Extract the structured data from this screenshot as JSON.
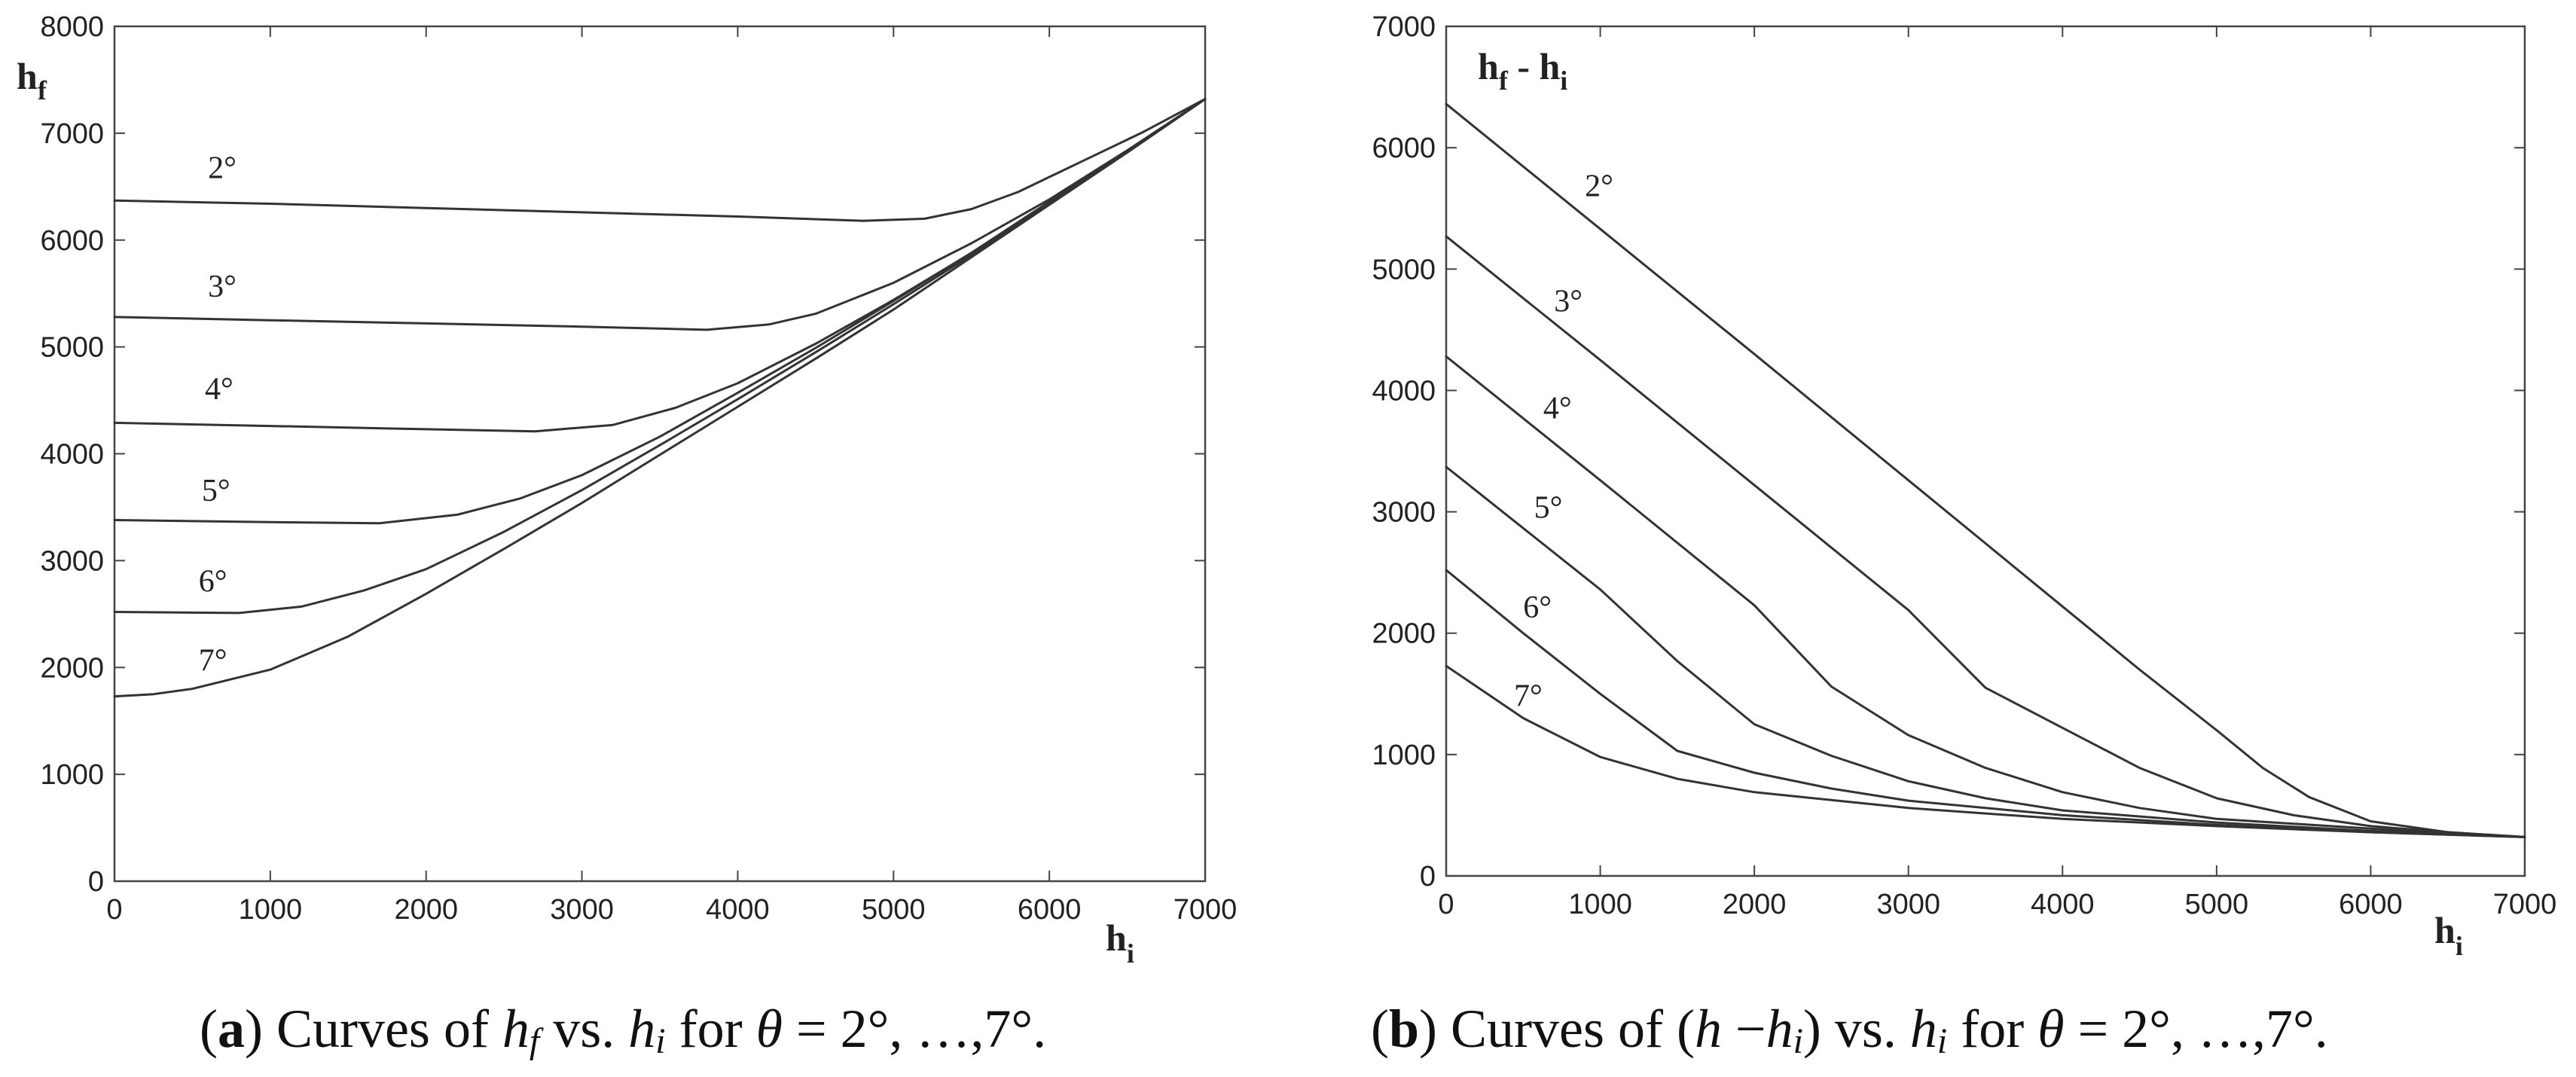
{
  "chart_data": [
    {
      "type": "line",
      "xlabel": "h",
      "xlabel_sub": "i",
      "ylabel": "h",
      "ylabel_sub": "f",
      "xlim": [
        0,
        7000
      ],
      "ylim": [
        0,
        8000
      ],
      "xticks": [
        "0",
        "1000",
        "2000",
        "3000",
        "4000",
        "5000",
        "6000",
        "7000"
      ],
      "yticks": [
        "0",
        "1000",
        "2000",
        "3000",
        "4000",
        "5000",
        "6000",
        "7000",
        "8000"
      ],
      "grid": false,
      "series": [
        {
          "name": "2°",
          "label_at": [
            600,
            6580
          ],
          "points": [
            [
              0,
              6370
            ],
            [
              1000,
              6340
            ],
            [
              2000,
              6300
            ],
            [
              3000,
              6260
            ],
            [
              4000,
              6220
            ],
            [
              4800,
              6180
            ],
            [
              5200,
              6200
            ],
            [
              5500,
              6290
            ],
            [
              5800,
              6450
            ],
            [
              6200,
              6730
            ],
            [
              6600,
              7010
            ],
            [
              7000,
              7320
            ]
          ]
        },
        {
          "name": "3°",
          "label_at": [
            600,
            5470
          ],
          "points": [
            [
              0,
              5280
            ],
            [
              1000,
              5250
            ],
            [
              2000,
              5220
            ],
            [
              3000,
              5190
            ],
            [
              3800,
              5160
            ],
            [
              4200,
              5210
            ],
            [
              4500,
              5310
            ],
            [
              5000,
              5600
            ],
            [
              5500,
              5970
            ],
            [
              6000,
              6380
            ],
            [
              6500,
              6840
            ],
            [
              7000,
              7320
            ]
          ]
        },
        {
          "name": "4°",
          "label_at": [
            580,
            4510
          ],
          "points": [
            [
              0,
              4290
            ],
            [
              1000,
              4260
            ],
            [
              2000,
              4230
            ],
            [
              2700,
              4210
            ],
            [
              3200,
              4270
            ],
            [
              3600,
              4430
            ],
            [
              4000,
              4660
            ],
            [
              4500,
              5030
            ],
            [
              5000,
              5440
            ],
            [
              5500,
              5880
            ],
            [
              6000,
              6360
            ],
            [
              6500,
              6830
            ],
            [
              7000,
              7320
            ]
          ]
        },
        {
          "name": "5°",
          "label_at": [
            560,
            3560
          ],
          "points": [
            [
              0,
              3380
            ],
            [
              1000,
              3360
            ],
            [
              1700,
              3350
            ],
            [
              2200,
              3430
            ],
            [
              2600,
              3580
            ],
            [
              3000,
              3800
            ],
            [
              3500,
              4160
            ],
            [
              4000,
              4570
            ],
            [
              4500,
              4990
            ],
            [
              5000,
              5430
            ],
            [
              5500,
              5880
            ],
            [
              6000,
              6350
            ],
            [
              6500,
              6830
            ],
            [
              7000,
              7320
            ]
          ]
        },
        {
          "name": "6°",
          "label_at": [
            540,
            2710
          ],
          "points": [
            [
              0,
              2520
            ],
            [
              800,
              2510
            ],
            [
              1200,
              2570
            ],
            [
              1600,
              2720
            ],
            [
              2000,
              2920
            ],
            [
              2500,
              3270
            ],
            [
              3000,
              3660
            ],
            [
              3500,
              4080
            ],
            [
              4000,
              4510
            ],
            [
              4500,
              4950
            ],
            [
              5000,
              5400
            ],
            [
              5500,
              5860
            ],
            [
              6000,
              6340
            ],
            [
              6500,
              6820
            ],
            [
              7000,
              7320
            ]
          ]
        },
        {
          "name": "7°",
          "label_at": [
            540,
            1970
          ],
          "points": [
            [
              0,
              1730
            ],
            [
              250,
              1750
            ],
            [
              500,
              1800
            ],
            [
              1000,
              1980
            ],
            [
              1500,
              2290
            ],
            [
              2000,
              2690
            ],
            [
              2500,
              3110
            ],
            [
              3000,
              3540
            ],
            [
              3500,
              3990
            ],
            [
              4000,
              4440
            ],
            [
              4500,
              4890
            ],
            [
              5000,
              5350
            ],
            [
              5500,
              5840
            ],
            [
              6000,
              6330
            ],
            [
              6500,
              6820
            ],
            [
              7000,
              7320
            ]
          ]
        }
      ]
    },
    {
      "type": "line",
      "xlabel": "h",
      "xlabel_sub": "i",
      "ylabel": "h",
      "ylabel_sub": "f",
      "ylabel_rest": " - h",
      "ylabel_rest_sub": "i",
      "xlim": [
        0,
        7000
      ],
      "ylim": [
        0,
        7000
      ],
      "xticks": [
        "0",
        "1000",
        "2000",
        "3000",
        "4000",
        "5000",
        "6000",
        "7000"
      ],
      "yticks": [
        "0",
        "1000",
        "2000",
        "3000",
        "4000",
        "5000",
        "6000",
        "7000"
      ],
      "grid": false,
      "series": [
        {
          "name": "2°",
          "label_at": [
            900,
            5600
          ],
          "points": [
            [
              0,
              6360
            ],
            [
              1000,
              5330
            ],
            [
              2000,
              4300
            ],
            [
              3000,
              3260
            ],
            [
              4000,
              2220
            ],
            [
              4500,
              1700
            ],
            [
              5000,
              1200
            ],
            [
              5300,
              890
            ],
            [
              5600,
              650
            ],
            [
              6000,
              450
            ],
            [
              6500,
              360
            ],
            [
              7000,
              320
            ]
          ]
        },
        {
          "name": "3°",
          "label_at": [
            700,
            4650
          ],
          "points": [
            [
              0,
              5270
            ],
            [
              1000,
              4250
            ],
            [
              2000,
              3220
            ],
            [
              3000,
              2190
            ],
            [
              3500,
              1550
            ],
            [
              4000,
              1220
            ],
            [
              4500,
              890
            ],
            [
              5000,
              640
            ],
            [
              5500,
              500
            ],
            [
              6000,
              410
            ],
            [
              6500,
              360
            ],
            [
              7000,
              320
            ]
          ]
        },
        {
          "name": "4°",
          "label_at": [
            630,
            3770
          ],
          "points": [
            [
              0,
              4280
            ],
            [
              1000,
              3260
            ],
            [
              2000,
              2230
            ],
            [
              2500,
              1560
            ],
            [
              3000,
              1160
            ],
            [
              3500,
              890
            ],
            [
              4000,
              690
            ],
            [
              4500,
              560
            ],
            [
              5000,
              470
            ],
            [
              6000,
              390
            ],
            [
              7000,
              320
            ]
          ]
        },
        {
          "name": "5°",
          "label_at": [
            570,
            2950
          ],
          "points": [
            [
              0,
              3370
            ],
            [
              1000,
              2360
            ],
            [
              1500,
              1770
            ],
            [
              2000,
              1250
            ],
            [
              2500,
              990
            ],
            [
              3000,
              780
            ],
            [
              3500,
              640
            ],
            [
              4000,
              540
            ],
            [
              5000,
              440
            ],
            [
              6000,
              370
            ],
            [
              7000,
              320
            ]
          ]
        },
        {
          "name": "6°",
          "label_at": [
            500,
            2130
          ],
          "points": [
            [
              0,
              2520
            ],
            [
              500,
              2000
            ],
            [
              1000,
              1500
            ],
            [
              1500,
              1030
            ],
            [
              2000,
              850
            ],
            [
              2500,
              720
            ],
            [
              3000,
              620
            ],
            [
              4000,
              500
            ],
            [
              5000,
              420
            ],
            [
              6000,
              360
            ],
            [
              7000,
              320
            ]
          ]
        },
        {
          "name": "7°",
          "label_at": [
            440,
            1400
          ],
          "points": [
            [
              0,
              1730
            ],
            [
              500,
              1300
            ],
            [
              1000,
              980
            ],
            [
              1500,
              800
            ],
            [
              2000,
              690
            ],
            [
              3000,
              560
            ],
            [
              4000,
              470
            ],
            [
              5000,
              410
            ],
            [
              6000,
              360
            ],
            [
              7000,
              320
            ]
          ]
        }
      ]
    }
  ],
  "captions": {
    "a": {
      "tag": "a",
      "pre": " Curves of ",
      "v1": "h",
      "v1_sub": "f",
      "mid1": " vs. ",
      "v2": "h",
      "v2_sub": "i",
      "mid2": " for ",
      "theta": "θ",
      "post": " = 2°, …,7°."
    },
    "b": {
      "tag": "b",
      "pre": " Curves of (",
      "v1": "h",
      "minus": " −",
      "v1b": "h",
      "v1b_sub": "i",
      "mid1": ") vs. ",
      "v2": "h",
      "v2_sub": "i",
      "mid2": " for ",
      "theta": "θ",
      "post": " = 2°, …,7°."
    }
  }
}
